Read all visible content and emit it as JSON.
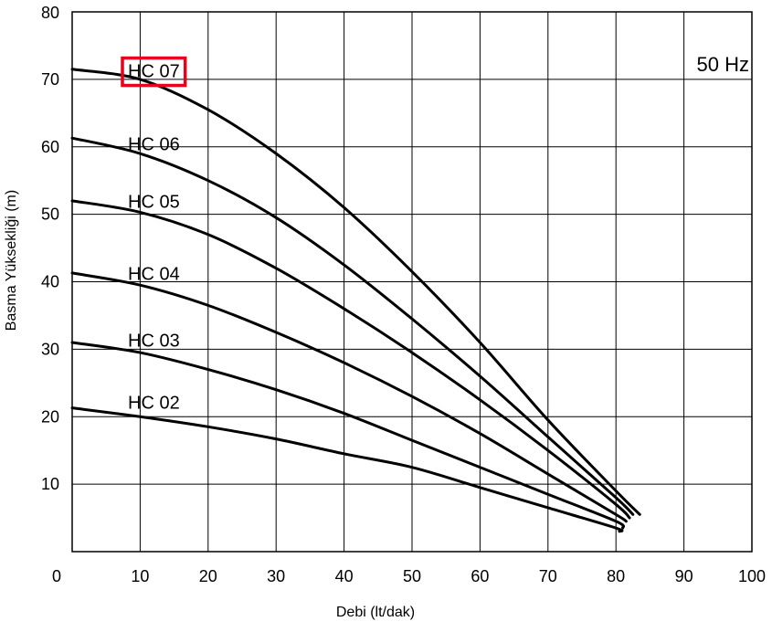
{
  "chart_data": {
    "type": "line",
    "title": "",
    "annotation": "50 Hz",
    "xlabel": "Debi (lt/dak)",
    "ylabel": "Basma Yüksekliği (m)",
    "xlim": [
      0,
      100
    ],
    "ylim": [
      0,
      80
    ],
    "x_ticks": [
      "0",
      "10",
      "20",
      "30",
      "40",
      "50",
      "60",
      "70",
      "80",
      "90",
      "100"
    ],
    "y_ticks": [
      "10",
      "20",
      "30",
      "40",
      "50",
      "60",
      "70",
      "80"
    ],
    "grid": true,
    "highlighted_series": "HC 07",
    "highlight_color": "#e8001c",
    "series": [
      {
        "name": "HC 07",
        "x": [
          0,
          10,
          20,
          30,
          40,
          50,
          60,
          70,
          80,
          83.5
        ],
        "y": [
          71.5,
          70,
          65.5,
          59,
          51,
          41.5,
          31,
          19.5,
          9,
          5.5
        ]
      },
      {
        "name": "HC 06",
        "x": [
          0,
          10,
          20,
          30,
          40,
          50,
          60,
          70,
          80,
          82.5
        ],
        "y": [
          61.3,
          59,
          55,
          49.5,
          42.5,
          34.5,
          26,
          17,
          8,
          5.5
        ]
      },
      {
        "name": "HC 05",
        "x": [
          0,
          10,
          20,
          30,
          40,
          50,
          60,
          70,
          80,
          82
        ],
        "y": [
          52,
          50.3,
          47,
          42,
          36,
          29.5,
          22.5,
          15,
          7,
          5
        ]
      },
      {
        "name": "HC 04",
        "x": [
          0,
          10,
          20,
          30,
          40,
          50,
          60,
          70,
          80,
          81.5
        ],
        "y": [
          41.3,
          39.5,
          36.5,
          32.5,
          28,
          23,
          17.5,
          11.5,
          5.5,
          4.5
        ]
      },
      {
        "name": "HC 03",
        "x": [
          0,
          10,
          20,
          30,
          40,
          50,
          60,
          70,
          80,
          81
        ],
        "y": [
          31,
          29.5,
          27,
          24,
          20.5,
          16.5,
          12.5,
          8.5,
          4.5,
          3.5
        ]
      },
      {
        "name": "HC 02",
        "x": [
          0,
          10,
          20,
          30,
          40,
          50,
          60,
          70,
          80,
          80.5
        ],
        "y": [
          21.3,
          20,
          18.5,
          16.7,
          14.5,
          12.5,
          9.5,
          6.5,
          3.5,
          3
        ]
      }
    ]
  }
}
